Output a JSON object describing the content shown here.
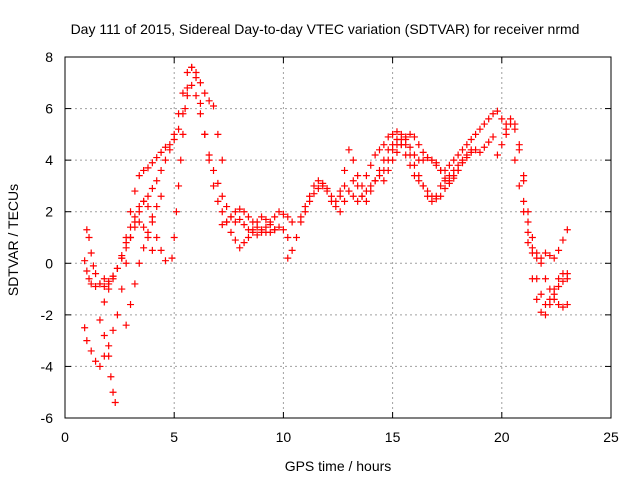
{
  "chart_data": {
    "type": "scatter",
    "title": "Day 111 of 2015, Sidereal Day-to-day VTEC variation (SDTVAR) for receiver nrmd",
    "xlabel": "GPS time / hours",
    "ylabel": "SDTVAR / TECUs",
    "xlim": [
      0,
      25
    ],
    "ylim": [
      -6,
      8
    ],
    "x_ticks": [
      "0",
      "5",
      "10",
      "15",
      "20",
      "25"
    ],
    "y_ticks": [
      "-6",
      "-4",
      "-2",
      "0",
      "2",
      "4",
      "6",
      "8"
    ],
    "grid": true,
    "marker": "+",
    "marker_color": "#ff0000",
    "series": [
      {
        "x": [
          0.9,
          1.0,
          1.1,
          1.2,
          1.4,
          1.6,
          1.8,
          2.0,
          2.2,
          2.4,
          2.6,
          2.8,
          3.0,
          3.2,
          3.4,
          3.6,
          3.8,
          4.0,
          4.2,
          4.4,
          4.6,
          4.8,
          5.0,
          5.2,
          5.4,
          5.6,
          5.8,
          6.0,
          6.2,
          6.4,
          6.6,
          6.8,
          7.0,
          7.2,
          7.4,
          7.6,
          7.8,
          8.0,
          8.2,
          8.4,
          8.6,
          8.8,
          9.0,
          9.2,
          9.4,
          9.6,
          9.8,
          10.0,
          10.2,
          10.4
        ],
        "y": [
          0.1,
          -0.3,
          -0.6,
          -0.8,
          -0.9,
          -0.8,
          -0.6,
          -0.8,
          -0.5,
          -0.2,
          0.3,
          1.0,
          2.0,
          2.8,
          3.4,
          3.6,
          3.7,
          3.9,
          4.1,
          4.3,
          4.5,
          4.6,
          4.8,
          5.2,
          5.8,
          6.5,
          6.9,
          6.5,
          5.8,
          5.0,
          4.2,
          3.6,
          3.1,
          2.6,
          2.2,
          1.8,
          1.6,
          1.7,
          1.5,
          1.3,
          1.2,
          1.1,
          1.2,
          1.4,
          1.6,
          1.8,
          2.0,
          1.9,
          1.8,
          1.6
        ]
      },
      {
        "x": [
          0.9,
          1.0,
          1.2,
          1.4,
          1.6,
          1.8,
          2.0,
          2.2,
          2.4,
          2.6,
          2.8,
          3.0,
          3.2,
          3.4,
          3.6,
          3.8,
          4.0,
          4.2,
          4.4,
          4.6,
          4.8,
          5.0,
          5.2,
          5.4,
          5.6,
          5.8,
          6.0,
          6.2,
          6.4,
          6.6,
          6.8,
          7.0,
          7.2,
          7.4,
          7.6,
          7.8,
          8.0,
          8.2,
          8.4,
          8.6,
          8.8,
          9.0,
          9.2,
          9.4,
          9.6
        ],
        "y": [
          -2.5,
          -3.0,
          -3.4,
          -3.8,
          -4.0,
          -3.6,
          -3.2,
          -2.6,
          -2.0,
          -1.0,
          0.0,
          1.0,
          1.6,
          2.0,
          2.4,
          2.6,
          2.9,
          3.2,
          3.6,
          4.0,
          4.4,
          5.0,
          5.8,
          6.6,
          7.4,
          7.6,
          7.2,
          6.2,
          5.0,
          4.0,
          3.0,
          2.4,
          2.0,
          1.6,
          1.2,
          0.9,
          0.6,
          0.8,
          1.0,
          1.3,
          1.6,
          1.8,
          1.7,
          1.5,
          1.3
        ]
      },
      {
        "x": [
          1.0,
          1.1,
          1.2,
          1.3,
          1.4,
          1.6,
          1.8,
          2.0,
          2.2,
          2.4,
          2.6,
          2.8,
          3.0,
          3.2,
          3.4,
          3.6,
          3.8,
          4.0,
          4.2,
          4.4,
          4.6
        ],
        "y": [
          1.3,
          1.0,
          0.4,
          -0.1,
          -0.4,
          -0.8,
          -0.9,
          -0.7,
          -0.5,
          -0.2,
          0.2,
          0.8,
          1.4,
          1.8,
          2.2,
          2.4,
          2.2,
          1.6,
          1.0,
          0.5,
          0.1
        ]
      },
      {
        "x": [
          1.6,
          1.8,
          2.0,
          2.1,
          2.2,
          2.3
        ],
        "y": [
          -2.2,
          -2.8,
          -3.6,
          -4.4,
          -5.0,
          -5.4
        ]
      },
      {
        "x": [
          1.8,
          2.0,
          2.2,
          2.4,
          2.6,
          2.8,
          3.0,
          3.2,
          3.4,
          3.6,
          3.8,
          4.0
        ],
        "y": [
          -1.5,
          -1.0,
          -0.6,
          -0.2,
          0.2,
          0.6,
          1.0,
          1.4,
          1.6,
          1.4,
          1.0,
          0.5
        ]
      },
      {
        "x": [
          2.8,
          3.0,
          3.2,
          3.4,
          3.6,
          3.8,
          4.0,
          4.2,
          4.4
        ],
        "y": [
          -2.4,
          -1.6,
          -0.8,
          0.0,
          0.6,
          1.2,
          1.8,
          2.2,
          2.6
        ]
      },
      {
        "x": [
          4.9,
          5.0,
          5.1,
          5.2,
          5.3,
          5.4,
          5.5,
          5.6,
          5.8,
          6.0,
          6.2,
          6.4,
          6.6,
          6.8,
          7.0,
          7.2
        ],
        "y": [
          0.2,
          1.0,
          2.0,
          3.0,
          4.0,
          5.0,
          6.0,
          6.8,
          7.6,
          7.4,
          7.0,
          6.6,
          6.3,
          6.1,
          5.0,
          4.0
        ]
      },
      {
        "x": [
          7.2,
          7.4,
          7.6,
          7.8,
          8.0,
          8.2,
          8.4,
          8.6,
          8.8,
          9.0,
          9.2,
          9.4,
          9.6,
          9.8,
          10.0,
          10.2
        ],
        "y": [
          1.5,
          1.6,
          1.8,
          2.0,
          2.1,
          2.0,
          1.8,
          1.6,
          1.4,
          1.3,
          1.2,
          1.2,
          1.3,
          1.4,
          1.3,
          1.0
        ]
      },
      {
        "x": [
          10.2,
          10.4,
          10.6,
          10.8,
          11.0,
          11.2,
          11.4,
          11.6,
          11.8,
          12.0,
          12.2,
          12.4,
          12.6,
          12.8,
          13.0,
          13.2,
          13.4,
          13.6,
          13.8,
          14.0,
          14.2,
          14.4,
          14.6,
          14.8,
          15.0,
          15.2,
          15.4,
          15.6,
          15.8,
          16.0,
          16.2,
          16.4,
          16.6,
          16.8,
          17.0,
          17.2,
          17.4,
          17.6,
          17.8,
          18.0,
          18.2,
          18.4,
          18.6,
          18.8,
          19.0,
          19.2,
          19.4,
          19.6
        ],
        "y": [
          0.2,
          0.5,
          1.0,
          1.6,
          2.0,
          2.4,
          2.7,
          2.9,
          3.0,
          2.8,
          2.4,
          2.2,
          2.6,
          3.0,
          2.8,
          2.6,
          2.4,
          2.6,
          2.8,
          3.0,
          3.2,
          3.4,
          3.6,
          4.0,
          4.4,
          4.6,
          4.8,
          4.6,
          4.2,
          3.8,
          3.4,
          3.0,
          2.6,
          2.4,
          2.6,
          3.0,
          3.2,
          3.4,
          3.6,
          3.8,
          4.0,
          4.2,
          4.4,
          4.4,
          4.3,
          4.5,
          4.7,
          4.9
        ]
      },
      {
        "x": [
          10.8,
          11.0,
          11.2,
          11.4,
          11.6,
          11.8,
          12.0,
          12.2,
          12.4,
          12.6,
          12.8,
          13.0,
          13.2,
          13.4,
          13.6,
          13.8,
          14.0,
          14.2,
          14.4,
          14.6,
          14.8,
          15.0,
          15.2,
          15.4,
          15.6,
          15.8,
          16.0,
          16.2,
          16.4,
          16.6,
          16.8,
          17.0,
          17.2,
          17.4,
          17.6,
          17.8,
          18.0,
          18.2,
          18.4,
          18.6,
          18.8,
          19.0,
          19.2,
          19.4,
          19.6,
          19.8,
          20.0,
          20.2
        ],
        "y": [
          1.8,
          2.2,
          2.6,
          3.0,
          3.2,
          3.1,
          2.9,
          2.6,
          2.4,
          2.8,
          3.6,
          4.4,
          4.0,
          3.4,
          3.0,
          3.4,
          3.8,
          4.2,
          4.4,
          4.6,
          4.9,
          5.0,
          5.1,
          5.0,
          4.8,
          4.5,
          4.2,
          4.0,
          4.0,
          4.1,
          4.0,
          3.8,
          3.6,
          3.6,
          3.8,
          4.0,
          4.2,
          4.4,
          4.6,
          4.8,
          5.0,
          5.2,
          5.4,
          5.6,
          5.8,
          5.9,
          5.6,
          5.2
        ]
      },
      {
        "x": [
          12.6,
          12.8,
          13.0,
          13.2,
          13.4,
          13.6,
          13.8,
          14.0,
          14.2,
          14.4,
          14.6,
          14.8,
          15.0,
          15.2,
          15.4,
          15.6,
          15.8,
          16.0,
          16.2,
          16.4,
          16.6,
          16.8,
          17.0,
          17.2,
          17.4,
          17.6,
          17.8,
          18.0
        ],
        "y": [
          2.0,
          2.4,
          2.8,
          3.2,
          3.0,
          2.6,
          2.4,
          2.8,
          3.2,
          3.6,
          4.0,
          4.4,
          4.6,
          4.8,
          4.6,
          4.2,
          3.8,
          3.4,
          3.2,
          3.0,
          2.8,
          2.6,
          2.5,
          2.6,
          2.9,
          3.2,
          3.4,
          3.6
        ]
      },
      {
        "x": [
          14.6,
          14.8,
          15.0,
          15.2,
          15.4,
          15.6,
          15.8,
          16.0,
          16.2,
          16.4,
          16.6,
          16.8,
          17.0,
          17.2,
          17.4,
          17.6,
          17.8,
          18.0,
          18.2,
          18.4,
          18.6
        ],
        "y": [
          3.2,
          3.6,
          4.0,
          4.3,
          4.6,
          4.9,
          5.0,
          4.9,
          4.6,
          4.3,
          4.1,
          4.0,
          3.9,
          3.6,
          3.3,
          3.1,
          3.3,
          3.6,
          3.9,
          4.1,
          4.3
        ]
      },
      {
        "x": [
          19.8,
          20.0,
          20.2,
          20.4,
          20.6,
          20.8,
          21.0,
          21.2,
          21.4,
          21.6,
          21.8,
          22.0,
          22.2,
          22.4,
          22.6,
          22.8,
          23.0
        ],
        "y": [
          4.2,
          4.6,
          5.0,
          5.4,
          5.2,
          4.4,
          3.2,
          2.0,
          1.0,
          0.4,
          0.0,
          -0.6,
          -1.0,
          -1.4,
          -1.6,
          -1.7,
          -1.6
        ]
      },
      {
        "x": [
          20.2,
          20.4,
          20.6,
          20.8,
          21.0,
          21.2,
          21.4,
          21.6,
          21.8,
          22.0,
          22.2,
          22.4,
          22.6,
          22.8,
          23.0
        ],
        "y": [
          5.4,
          5.6,
          5.4,
          4.6,
          3.4,
          1.6,
          0.4,
          -0.6,
          -1.2,
          -1.6,
          -1.4,
          -1.0,
          -0.6,
          -0.4,
          -0.4
        ]
      },
      {
        "x": [
          20.6,
          20.8,
          21.0,
          21.2,
          21.4,
          21.6,
          21.8,
          22.0,
          22.2,
          22.4,
          22.6,
          22.8,
          23.0
        ],
        "y": [
          4.0,
          3.0,
          2.0,
          1.2,
          0.6,
          0.2,
          0.2,
          0.4,
          0.3,
          0.2,
          0.5,
          0.9,
          1.3
        ]
      },
      {
        "x": [
          21.0,
          21.2,
          21.4,
          21.6,
          21.8,
          22.0,
          22.2,
          22.4,
          22.6,
          22.8,
          23.0
        ],
        "y": [
          2.4,
          0.8,
          -0.6,
          -1.4,
          -1.9,
          -2.0,
          -1.6,
          -1.2,
          -0.9,
          -0.7,
          -0.6
        ]
      }
    ]
  }
}
